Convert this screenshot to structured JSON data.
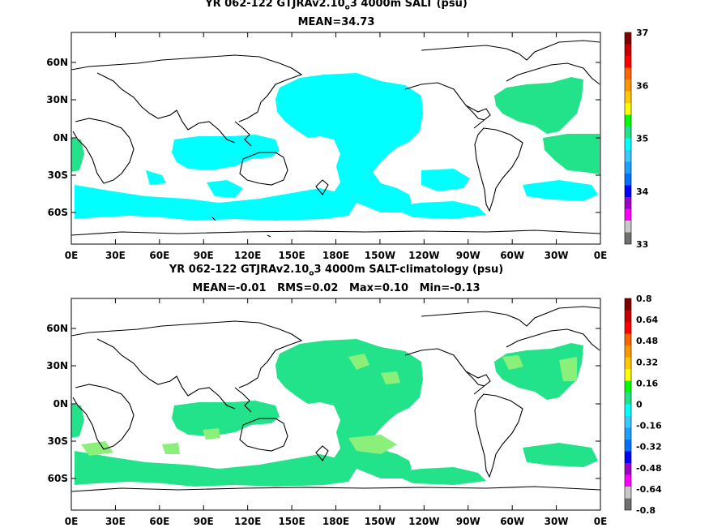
{
  "colors": {
    "cyan": "#00ffff",
    "green": "#22e38a",
    "light_green": "#8bf07a",
    "land": "#ffffff",
    "coast": "#000000",
    "scale": [
      "#707070",
      "#c8c8c8",
      "#ff00ff",
      "#a000c8",
      "#0000ff",
      "#0070ff",
      "#1ea0ff",
      "#3cc8ff",
      "#00ffff",
      "#22e38a",
      "#00ff00",
      "#ffff00",
      "#ffc800",
      "#ff9600",
      "#ff6400",
      "#ff0000",
      "#c80000",
      "#800000"
    ]
  },
  "panels": [
    {
      "title_main": "YR 062-122 GTJRAv2.10",
      "title_sub": "o",
      "title_rest": "3 4000m SALT (psu)",
      "stats": "MEAN=34.73",
      "lat_labels": [
        "60N",
        "30N",
        "0N",
        "30S",
        "60S"
      ],
      "lon_labels": [
        "0E",
        "30E",
        "60E",
        "90E",
        "120E",
        "150E",
        "180E",
        "150W",
        "120W",
        "90W",
        "60W",
        "30W",
        "0E"
      ],
      "colorbar_labels": [
        "37",
        "36",
        "35",
        "34",
        "33"
      ]
    },
    {
      "title_main": "YR 062-122 GTJRAv2.10",
      "title_sub": "o",
      "title_rest": "3 4000m SALT-climatology (psu)",
      "stats": "MEAN=-0.01   RMS=0.02   Max=0.10   Min=-0.13",
      "lat_labels": [
        "60N",
        "30N",
        "0N",
        "30S",
        "60S"
      ],
      "lon_labels": [
        "0E",
        "30E",
        "60E",
        "90E",
        "120E",
        "150E",
        "180E",
        "150W",
        "120W",
        "90W",
        "60W",
        "30W",
        "0E"
      ],
      "colorbar_labels": [
        "0.8",
        "0.64",
        "0.48",
        "0.32",
        "0.16",
        "0",
        "-0.16",
        "-0.32",
        "-0.48",
        "-0.64",
        "-0.8"
      ]
    }
  ]
}
